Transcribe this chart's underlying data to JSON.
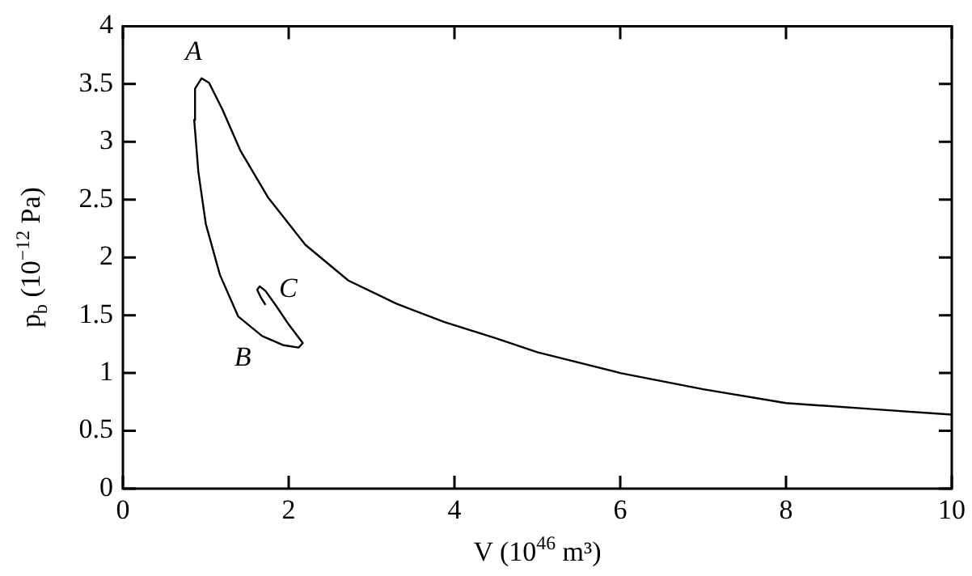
{
  "chart_data": {
    "type": "line",
    "xlabel": "V (10$^{46}$ m³)",
    "ylabel": "p$_{b}$ (10$^{−12}$ Pa)",
    "xlim": [
      0,
      10
    ],
    "ylim": [
      0,
      4
    ],
    "xticks": [
      0,
      2,
      4,
      6,
      8,
      10
    ],
    "yticks": [
      0,
      0.5,
      1,
      1.5,
      2,
      2.5,
      3,
      3.5,
      4
    ],
    "grid": false,
    "legend": false,
    "marker": "none",
    "line_style": "solid",
    "series": [
      {
        "color": "#000000",
        "x": [
          1.72,
          1.66,
          1.62,
          1.65,
          1.72,
          1.85,
          2.0,
          2.17,
          2.12,
          1.94,
          1.68,
          1.39,
          1.17,
          1.0,
          0.91,
          0.86,
          0.87,
          0.95,
          1.04,
          1.2,
          1.42,
          1.75,
          2.2,
          2.72,
          3.3,
          3.88,
          4.5,
          5,
          6,
          7,
          8,
          9,
          10
        ],
        "values": [
          1.59,
          1.66,
          1.72,
          1.75,
          1.71,
          1.58,
          1.42,
          1.26,
          1.22,
          1.24,
          1.32,
          1.49,
          1.85,
          2.29,
          2.74,
          3.19,
          3.46,
          3.55,
          3.51,
          3.28,
          2.92,
          2.52,
          2.11,
          1.8,
          1.6,
          1.44,
          1.3,
          1.18,
          1.0,
          0.86,
          0.74,
          0.69,
          0.64
        ]
      }
    ],
    "annotations": [
      {
        "text": "A",
        "x": 0.95,
        "y": 3.55
      },
      {
        "text": "B",
        "x": 1.68,
        "y": 1.32
      },
      {
        "text": "C",
        "x": 1.72,
        "y": 1.71
      }
    ]
  }
}
